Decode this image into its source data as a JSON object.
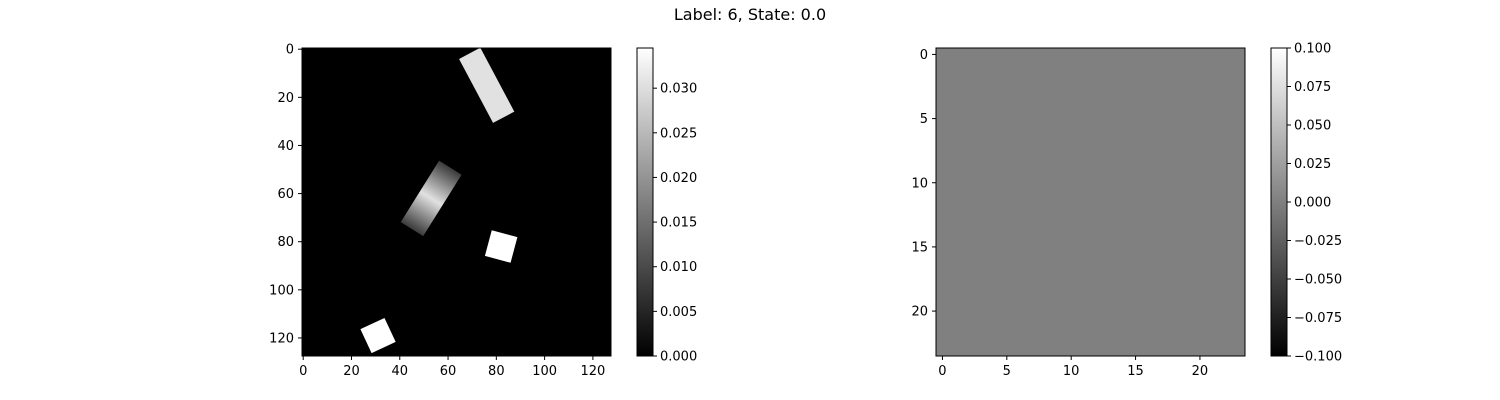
{
  "figure": {
    "suptitle": "Label: 6, State: 0.0"
  },
  "chart_data": [
    {
      "type": "heatmap",
      "colormap": "gray",
      "image_shape": [
        128,
        128
      ],
      "xlim": [
        -0.5,
        127.5
      ],
      "ylim": [
        127.5,
        -0.5
      ],
      "x_ticks": [
        0,
        20,
        40,
        60,
        80,
        100,
        120
      ],
      "x_tick_labels": [
        "0",
        "20",
        "40",
        "60",
        "80",
        "100",
        "120"
      ],
      "y_ticks": [
        0,
        20,
        40,
        60,
        80,
        100,
        120
      ],
      "y_tick_labels": [
        "0",
        "20",
        "40",
        "60",
        "80",
        "100",
        "120"
      ],
      "background_value": 0.0,
      "objects": [
        {
          "shape": "rectangle",
          "center": [
            76,
            15
          ],
          "length": 30,
          "width": 10,
          "angle_deg": 62,
          "value": 0.0305,
          "gradient": false
        },
        {
          "shape": "rectangle",
          "center": [
            53,
            62
          ],
          "length": 30,
          "width": 11,
          "angle_deg": -58,
          "value": 0.0305,
          "gradient": true,
          "edge_value": 0.008
        },
        {
          "shape": "square",
          "center": [
            82,
            82
          ],
          "size": 11,
          "angle_deg": 15,
          "value": 0.0345,
          "gradient": false
        },
        {
          "shape": "square",
          "center": [
            31,
            119
          ],
          "size": 11,
          "angle_deg": -25,
          "value": 0.0345,
          "gradient": false
        }
      ],
      "colorbar": {
        "vmin": 0.0,
        "vmax": 0.0345,
        "ticks": [
          0.0,
          0.005,
          0.01,
          0.015,
          0.02,
          0.025,
          0.03
        ],
        "tick_labels": [
          "0.000",
          "0.005",
          "0.010",
          "0.015",
          "0.020",
          "0.025",
          "0.030"
        ]
      }
    },
    {
      "type": "heatmap",
      "colormap": "gray",
      "image_shape": [
        24,
        24
      ],
      "xlim": [
        -0.5,
        23.5
      ],
      "ylim": [
        23.5,
        -0.5
      ],
      "x_ticks": [
        0,
        5,
        10,
        15,
        20
      ],
      "x_tick_labels": [
        "0",
        "5",
        "10",
        "15",
        "20"
      ],
      "y_ticks": [
        0,
        5,
        10,
        15,
        20
      ],
      "y_tick_labels": [
        "0",
        "5",
        "10",
        "15",
        "20"
      ],
      "uniform_value": 0.0,
      "colorbar": {
        "vmin": -0.1,
        "vmax": 0.1,
        "ticks": [
          -0.1,
          -0.075,
          -0.05,
          -0.025,
          0.0,
          0.025,
          0.05,
          0.075,
          0.1
        ],
        "tick_labels": [
          "−0.100",
          "−0.075",
          "−0.050",
          "−0.025",
          "0.000",
          "0.025",
          "0.050",
          "0.075",
          "0.100"
        ]
      }
    }
  ]
}
